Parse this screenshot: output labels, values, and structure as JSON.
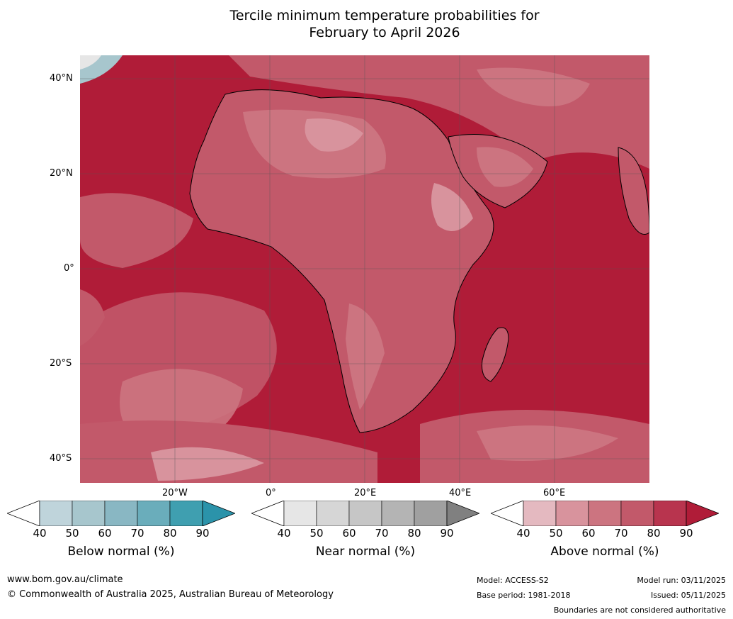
{
  "title": {
    "line1": "Tercile minimum temperature probabilities for",
    "line2": "February to April 2026"
  },
  "map": {
    "latitude_labels": [
      "40°N",
      "20°N",
      "0°",
      "20°S",
      "40°S"
    ],
    "longitude_labels": [
      "20°W",
      "0°",
      "20°E",
      "40°E",
      "60°E"
    ]
  },
  "legends": [
    {
      "title": "Below normal (%)",
      "ticks": [
        "40",
        "50",
        "60",
        "70",
        "80",
        "90"
      ],
      "colors": [
        "#ffffff",
        "#bfd4db",
        "#a7c6cd",
        "#89b7c3",
        "#6aadbb",
        "#3f9fb0",
        "#2b93aa"
      ]
    },
    {
      "title": "Near normal (%)",
      "ticks": [
        "40",
        "50",
        "60",
        "70",
        "80",
        "90"
      ],
      "colors": [
        "#ffffff",
        "#e6e6e6",
        "#d6d6d6",
        "#c6c6c6",
        "#b4b4b4",
        "#a0a0a0",
        "#808080"
      ]
    },
    {
      "title": "Above normal (%)",
      "ticks": [
        "40",
        "50",
        "60",
        "70",
        "80",
        "90"
      ],
      "colors": [
        "#ffffff",
        "#e4b9c0",
        "#d8939d",
        "#cc7480",
        "#c2596a",
        "#b8344e",
        "#b01c38"
      ]
    }
  ],
  "footer": {
    "website": "www.bom.gov.au/climate",
    "copyright": "© Commonwealth of Australia 2025, Australian Bureau of Meteorology",
    "model": "Model: ACCESS-S2",
    "base_period": "Base period: 1981-2018",
    "model_run": "Model run: 03/11/2025",
    "issued": "Issued: 05/11/2025",
    "disclaimer": "Boundaries are not considered authoritative"
  }
}
